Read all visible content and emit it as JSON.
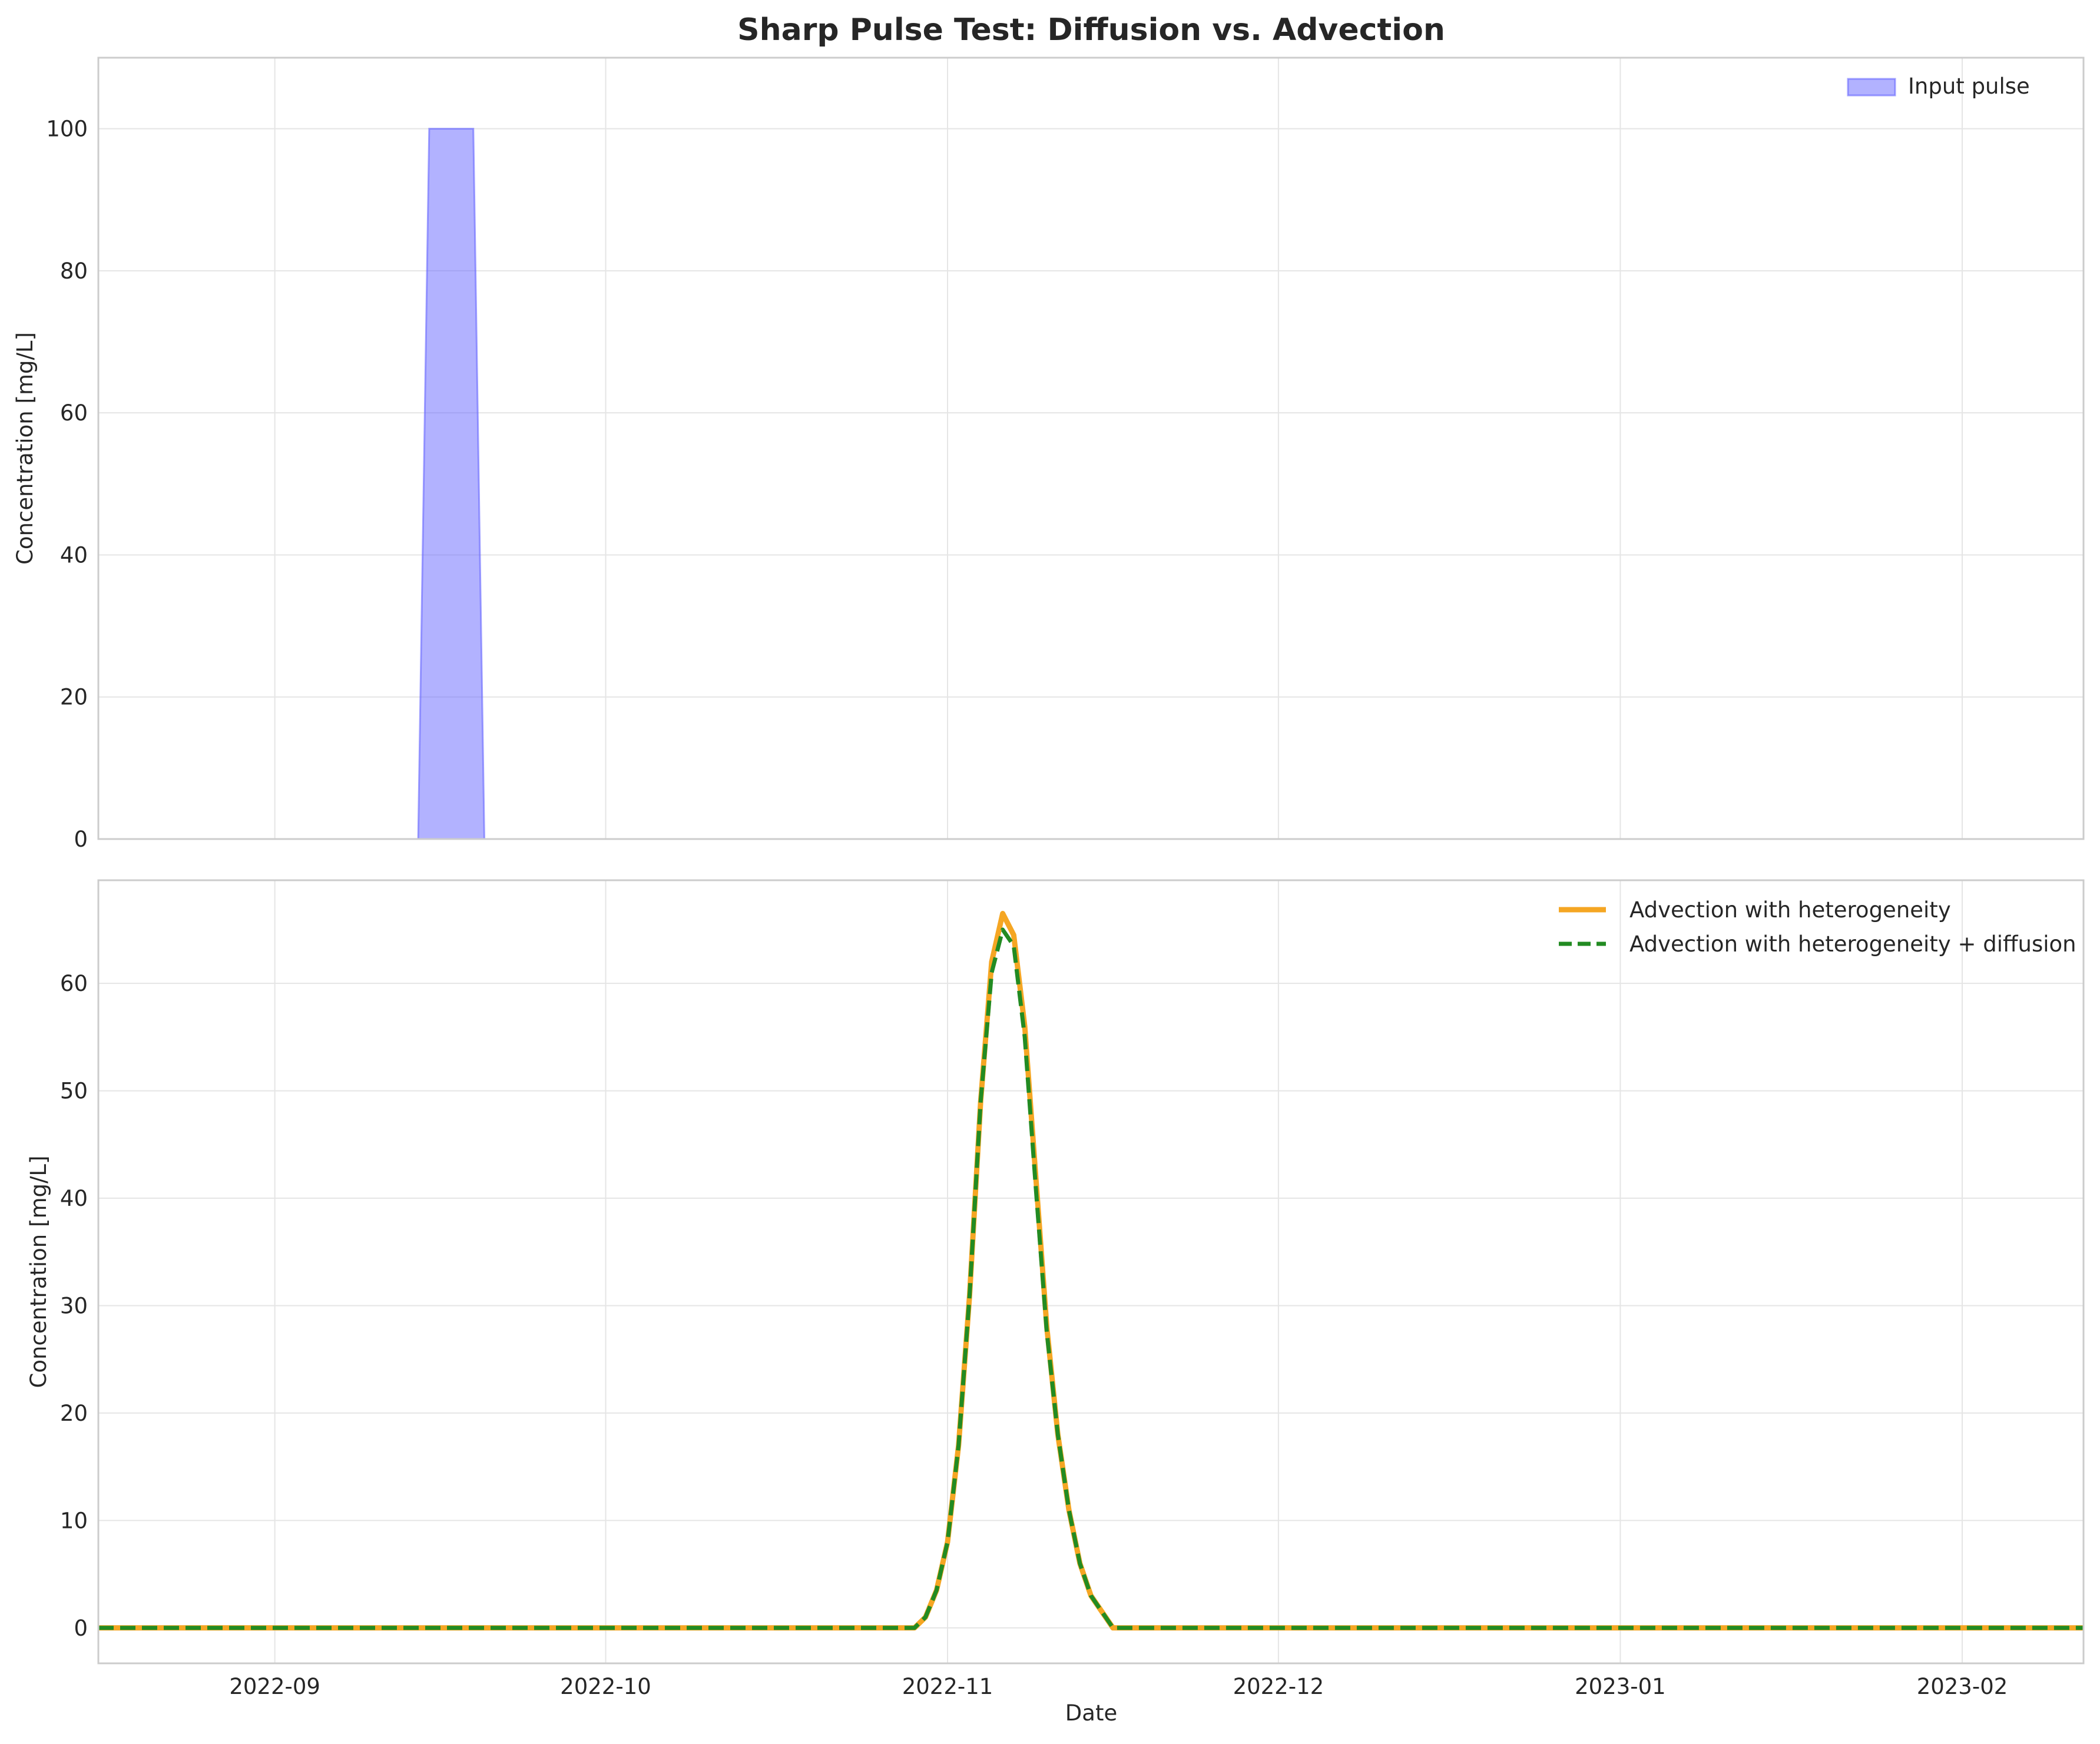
{
  "chart_data": {
    "type": "area",
    "title": "Sharp Pulse Test: Diffusion vs. Advection",
    "xlabel": "Date",
    "x_range": [
      "2022-08-16",
      "2023-02-12"
    ],
    "x_ticks": [
      "2022-09",
      "2022-10",
      "2022-11",
      "2022-12",
      "2023-01",
      "2023-02"
    ],
    "grid": true,
    "panels": [
      {
        "type": "area",
        "ylabel": "Concentration [mg/L]",
        "ylim": [
          0,
          110
        ],
        "y_ticks": [
          0,
          20,
          40,
          60,
          80,
          100
        ],
        "legend_position": "upper right",
        "series": [
          {
            "name": "Input pulse",
            "style": "filled area",
            "color": "#6666ff",
            "x": [
              "2022-08-16",
              "2022-09-14",
              "2022-09-15",
              "2022-09-19",
              "2022-09-20",
              "2023-02-12"
            ],
            "y": [
              0,
              0,
              100,
              100,
              0,
              0
            ]
          }
        ]
      },
      {
        "type": "line",
        "ylabel": "Concentration [mg/L]",
        "ylim": [
          -3.3,
          69.6
        ],
        "y_ticks": [
          0,
          10,
          20,
          30,
          40,
          50,
          60
        ],
        "legend_position": "upper right",
        "series": [
          {
            "name": "Advection with heterogeneity",
            "style": "solid",
            "color": "#f5a623",
            "x": [
              "2022-08-16",
              "2022-10-29",
              "2022-10-30",
              "2022-10-31",
              "2022-11-01",
              "2022-11-02",
              "2022-11-03",
              "2022-11-04",
              "2022-11-05",
              "2022-11-06",
              "2022-11-07",
              "2022-11-08",
              "2022-11-09",
              "2022-11-10",
              "2022-11-11",
              "2022-11-12",
              "2022-11-13",
              "2022-11-14",
              "2022-11-15",
              "2022-11-16",
              "2023-02-12"
            ],
            "y": [
              0,
              0,
              1,
              3.5,
              8,
              17,
              31,
              49,
              62,
              66.5,
              64.5,
              56,
              42,
              28,
              18,
              11,
              6,
              3,
              1.5,
              0,
              0
            ]
          },
          {
            "name": "Advection with heterogeneity + diffusion",
            "style": "dashed",
            "color": "#228b22",
            "x": [
              "2022-08-16",
              "2022-10-29",
              "2022-10-30",
              "2022-10-31",
              "2022-11-01",
              "2022-11-02",
              "2022-11-03",
              "2022-11-04",
              "2022-11-05",
              "2022-11-06",
              "2022-11-07",
              "2022-11-08",
              "2022-11-09",
              "2022-11-10",
              "2022-11-11",
              "2022-11-12",
              "2022-11-13",
              "2022-11-14",
              "2022-11-15",
              "2022-11-16",
              "2023-02-12"
            ],
            "y": [
              0,
              0,
              1,
              3.5,
              8,
              17,
              31,
              49,
              61,
              65,
              63.5,
              55,
              41,
              27.5,
              18,
              11,
              6,
              3,
              1.5,
              0,
              0
            ]
          }
        ]
      }
    ]
  }
}
